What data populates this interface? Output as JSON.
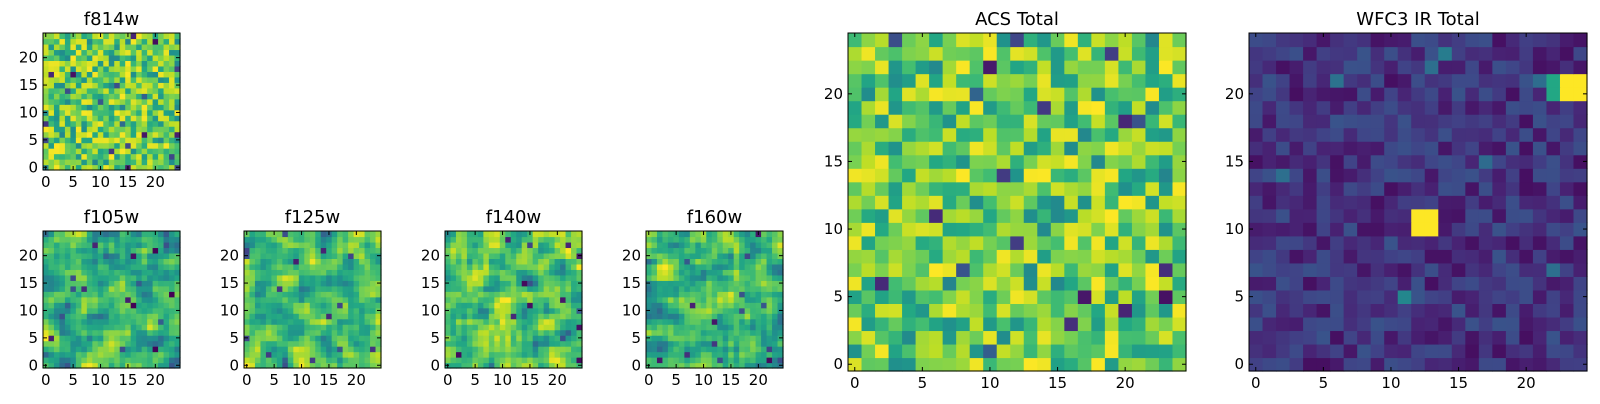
{
  "chart_data": [
    {
      "type": "heatmap",
      "title": "f814w",
      "colormap": "viridis",
      "seed": 11,
      "mode": "bright",
      "grid": [
        25,
        25
      ],
      "xlim": [
        -0.5,
        24.5
      ],
      "ylim": [
        -0.5,
        24.5
      ],
      "xticks": [
        0,
        5,
        10,
        15,
        20
      ],
      "yticks": [
        0,
        5,
        10,
        15,
        20
      ]
    },
    {
      "type": "heatmap",
      "title": "f105w",
      "colormap": "viridis",
      "seed": 23,
      "mode": "smooth",
      "grid": [
        25,
        25
      ],
      "xlim": [
        -0.5,
        24.5
      ],
      "ylim": [
        -0.5,
        24.5
      ],
      "xticks": [
        0,
        5,
        10,
        15,
        20
      ],
      "yticks": [
        0,
        5,
        10,
        15,
        20
      ]
    },
    {
      "type": "heatmap",
      "title": "f125w",
      "colormap": "viridis",
      "seed": 37,
      "mode": "smooth",
      "grid": [
        25,
        25
      ],
      "xlim": [
        -0.5,
        24.5
      ],
      "ylim": [
        -0.5,
        24.5
      ],
      "xticks": [
        0,
        5,
        10,
        15,
        20
      ],
      "yticks": [
        0,
        5,
        10,
        15,
        20
      ]
    },
    {
      "type": "heatmap",
      "title": "f140w",
      "colormap": "viridis",
      "seed": 41,
      "mode": "smooth",
      "grid": [
        25,
        25
      ],
      "xlim": [
        -0.5,
        24.5
      ],
      "ylim": [
        -0.5,
        24.5
      ],
      "xticks": [
        0,
        5,
        10,
        15,
        20
      ],
      "yticks": [
        0,
        5,
        10,
        15,
        20
      ]
    },
    {
      "type": "heatmap",
      "title": "f160w",
      "colormap": "viridis",
      "seed": 53,
      "mode": "smooth",
      "grid": [
        25,
        25
      ],
      "xlim": [
        -0.5,
        24.5
      ],
      "ylim": [
        -0.5,
        24.5
      ],
      "xticks": [
        0,
        5,
        10,
        15,
        20
      ],
      "yticks": [
        0,
        5,
        10,
        15,
        20
      ]
    },
    {
      "type": "heatmap",
      "title": "ACS Total",
      "colormap": "viridis",
      "seed": 67,
      "mode": "bright",
      "grid": [
        25,
        25
      ],
      "xlim": [
        -0.5,
        24.5
      ],
      "ylim": [
        -0.5,
        24.5
      ],
      "xticks": [
        0,
        5,
        10,
        15,
        20
      ],
      "yticks": [
        0,
        5,
        10,
        15,
        20
      ]
    },
    {
      "type": "heatmap",
      "title": "WFC3 IR Total",
      "colormap": "viridis",
      "seed": 79,
      "mode": "dark",
      "grid": [
        25,
        25
      ],
      "xlim": [
        -0.5,
        24.5
      ],
      "ylim": [
        -0.5,
        24.5
      ],
      "xticks": [
        0,
        5,
        10,
        15,
        20
      ],
      "yticks": [
        0,
        5,
        10,
        15,
        20
      ],
      "bright_patches": [
        {
          "x": [
            12,
            13
          ],
          "y": [
            10,
            11
          ],
          "value": 1.0
        },
        {
          "x": [
            23,
            24
          ],
          "y": [
            20,
            21
          ],
          "value": 1.0
        },
        {
          "x": [
            22,
            22
          ],
          "y": [
            20,
            21
          ],
          "value": 0.6
        }
      ]
    }
  ]
}
